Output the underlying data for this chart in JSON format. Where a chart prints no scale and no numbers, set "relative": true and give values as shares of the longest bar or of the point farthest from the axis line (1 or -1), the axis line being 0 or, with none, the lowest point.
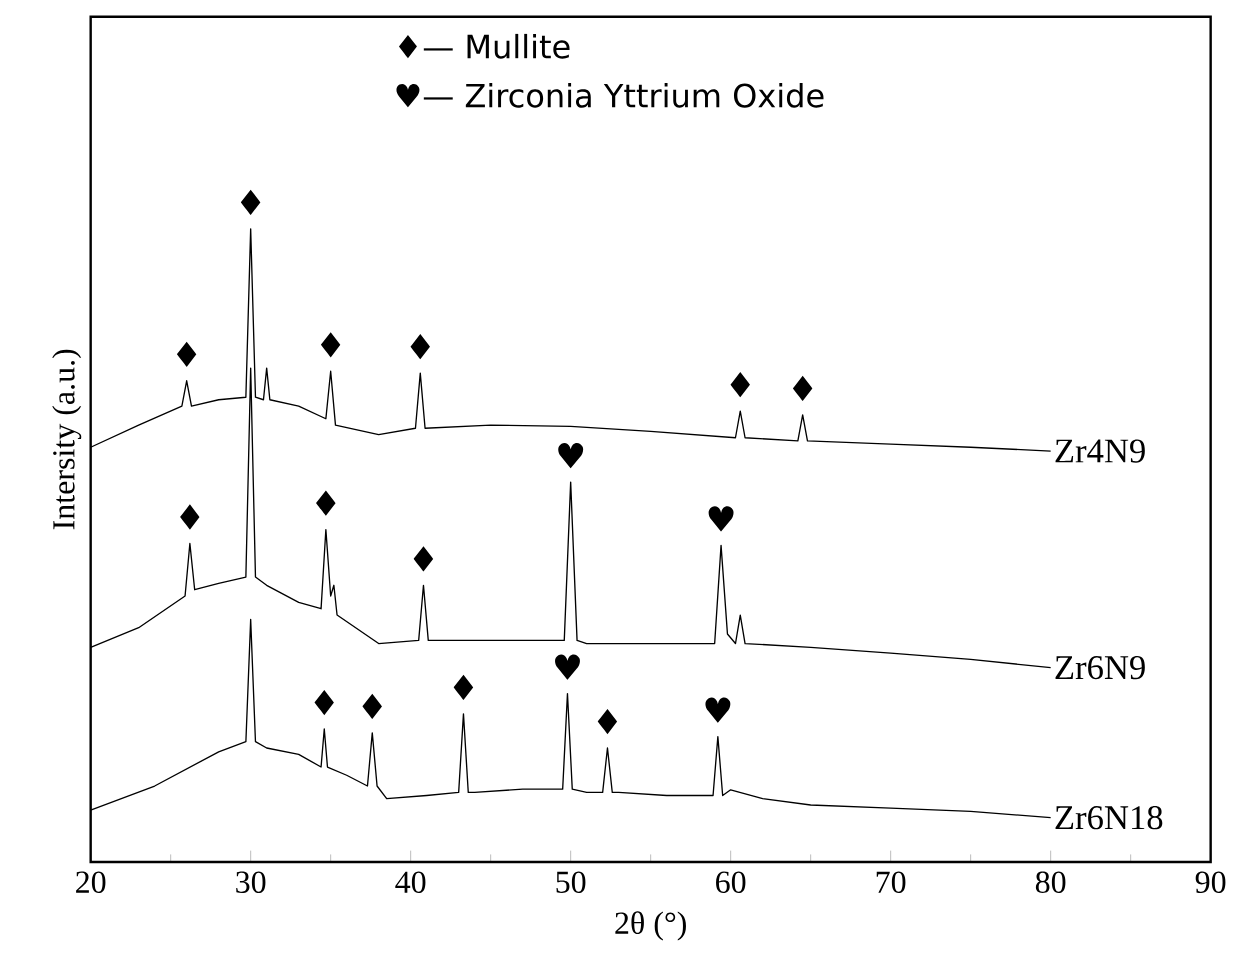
{
  "chart_data": {
    "type": "line",
    "relative": true,
    "xlabel": "2θ (°)",
    "ylabel": "Intersity (a.u.)",
    "xlim": [
      20,
      90
    ],
    "xticks": [
      20,
      30,
      40,
      50,
      60,
      70,
      80,
      90
    ],
    "marker": "none",
    "line_style": "solid",
    "series": [
      {
        "name": "Zr4N9",
        "color": "#000000",
        "x": [
          20,
          23,
          25.7,
          26,
          26.3,
          28,
          29.7,
          30,
          30.3,
          30.8,
          31,
          31.2,
          33,
          34.7,
          35,
          35.3,
          38,
          40.3,
          40.6,
          40.9,
          45,
          50,
          55,
          60.3,
          60.6,
          60.9,
          64.2,
          64.5,
          64.8,
          70,
          75,
          80
        ],
        "values": [
          0.655,
          0.69,
          0.72,
          0.76,
          0.72,
          0.73,
          0.734,
          1.0,
          0.734,
          0.73,
          0.78,
          0.73,
          0.72,
          0.7,
          0.775,
          0.69,
          0.675,
          0.685,
          0.772,
          0.685,
          0.69,
          0.688,
          0.68,
          0.67,
          0.712,
          0.67,
          0.665,
          0.706,
          0.665,
          0.66,
          0.655,
          0.649
        ]
      },
      {
        "name": "Zr6N9",
        "color": "#000000",
        "x": [
          20,
          23,
          25.9,
          26.2,
          26.5,
          28,
          29.7,
          30,
          30.3,
          31,
          33,
          34.4,
          34.7,
          35,
          35.2,
          35.4,
          38,
          40.5,
          40.8,
          41.1,
          45,
          49.6,
          50,
          50.4,
          51,
          55,
          59.0,
          59.4,
          59.8,
          60.3,
          60.6,
          60.9,
          65,
          70,
          75,
          80
        ],
        "values": [
          0.339,
          0.37,
          0.42,
          0.503,
          0.43,
          0.44,
          0.45,
          0.78,
          0.45,
          0.437,
          0.41,
          0.4,
          0.525,
          0.42,
          0.437,
          0.39,
          0.345,
          0.35,
          0.437,
          0.35,
          0.35,
          0.35,
          0.6,
          0.35,
          0.345,
          0.345,
          0.345,
          0.5,
          0.36,
          0.345,
          0.39,
          0.345,
          0.339,
          0.33,
          0.32,
          0.307
        ]
      },
      {
        "name": "Zr6N18",
        "color": "#000000",
        "x": [
          20,
          24,
          28,
          29.7,
          30,
          30.3,
          31,
          33,
          34.4,
          34.6,
          34.8,
          36,
          37.3,
          37.6,
          37.9,
          38.5,
          41,
          43.0,
          43.3,
          43.6,
          44,
          47,
          49.5,
          49.8,
          50.1,
          51,
          52.0,
          52.3,
          52.6,
          53,
          56,
          58.9,
          59.2,
          59.5,
          60,
          62,
          65,
          70,
          75,
          80
        ],
        "values": [
          0.082,
          0.12,
          0.174,
          0.19,
          0.383,
          0.19,
          0.18,
          0.17,
          0.15,
          0.21,
          0.15,
          0.137,
          0.12,
          0.204,
          0.12,
          0.1,
          0.105,
          0.11,
          0.234,
          0.11,
          0.11,
          0.115,
          0.115,
          0.266,
          0.115,
          0.11,
          0.11,
          0.18,
          0.11,
          0.11,
          0.105,
          0.105,
          0.198,
          0.105,
          0.114,
          0.1,
          0.09,
          0.085,
          0.08,
          0.07
        ]
      }
    ],
    "annotations": [
      "♦— Mullite",
      "♥— Zirconia Yttrium Oxide",
      {
        "text": "♦",
        "x": 26,
        "y": 0.76
      },
      {
        "text": "♦",
        "x": 30,
        "y": 1.0
      },
      {
        "text": "♦",
        "x": 35,
        "y": 0.775
      },
      {
        "text": "♦",
        "x": 40.6,
        "y": 0.772
      },
      {
        "text": "♦",
        "x": 60.6,
        "y": 0.712
      },
      {
        "text": "♦",
        "x": 64.5,
        "y": 0.706
      },
      {
        "text": "♦",
        "x": 26.2,
        "y": 0.503
      },
      {
        "text": "♦",
        "x": 34.7,
        "y": 0.525
      },
      {
        "text": "♦",
        "x": 40.8,
        "y": 0.437
      },
      {
        "text": "♥",
        "x": 50,
        "y": 0.6
      },
      {
        "text": "♥",
        "x": 59.4,
        "y": 0.5
      },
      {
        "text": "♦",
        "x": 34.6,
        "y": 0.21
      },
      {
        "text": "♦",
        "x": 37.6,
        "y": 0.204
      },
      {
        "text": "♦",
        "x": 43.3,
        "y": 0.234
      },
      {
        "text": "♥",
        "x": 49.8,
        "y": 0.266
      },
      {
        "text": "♦",
        "x": 52.3,
        "y": 0.18
      },
      {
        "text": "♥",
        "x": 59.2,
        "y": 0.198
      }
    ]
  }
}
